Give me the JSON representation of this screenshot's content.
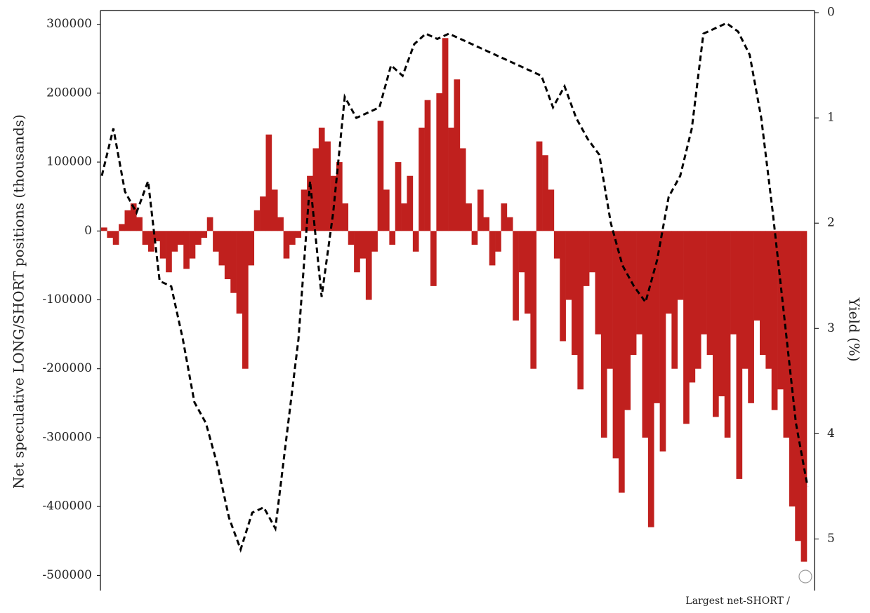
{
  "chart_data": {
    "type": "bar",
    "y_label": "Net speculative LONG/SHORT positions (thousands)",
    "y2_label": "Yield (%)",
    "annotation": "Largest net-SHORT /",
    "ylim": [
      -522000,
      320000
    ],
    "yticks": [
      300000,
      200000,
      100000,
      0,
      -100000,
      -200000,
      -300000,
      -400000,
      -500000
    ],
    "y2lim": [
      5.49,
      -0.02
    ],
    "y2ticks": [
      0,
      1,
      2,
      3,
      4,
      5
    ],
    "series": [
      {
        "type": "bar",
        "color": "#c0201e",
        "values": [
          5000,
          -10000,
          -20000,
          10000,
          30000,
          40000,
          20000,
          -20000,
          -30000,
          -15000,
          -40000,
          -60000,
          -30000,
          -20000,
          -55000,
          -40000,
          -20000,
          -10000,
          20000,
          -30000,
          -50000,
          -70000,
          -90000,
          -120000,
          -200000,
          -50000,
          30000,
          50000,
          140000,
          60000,
          20000,
          -40000,
          -20000,
          -10000,
          60000,
          80000,
          120000,
          150000,
          130000,
          80000,
          100000,
          40000,
          -20000,
          -60000,
          -40000,
          -100000,
          -30000,
          160000,
          60000,
          -20000,
          100000,
          40000,
          80000,
          -30000,
          150000,
          190000,
          -80000,
          200000,
          280000,
          150000,
          220000,
          120000,
          40000,
          -20000,
          60000,
          20000,
          -50000,
          -30000,
          40000,
          20000,
          -130000,
          -60000,
          -120000,
          -200000,
          130000,
          110000,
          60000,
          -40000,
          -160000,
          -100000,
          -180000,
          -230000,
          -80000,
          -60000,
          -150000,
          -300000,
          -200000,
          -330000,
          -380000,
          -260000,
          -180000,
          -150000,
          -300000,
          -430000,
          -250000,
          -320000,
          -120000,
          -200000,
          -100000,
          -280000,
          -220000,
          -200000,
          -150000,
          -180000,
          -270000,
          -240000,
          -300000,
          -150000,
          -360000,
          -200000,
          -250000,
          -130000,
          -180000,
          -200000,
          -260000,
          -230000,
          -300000,
          -400000,
          -450000,
          -480000
        ]
      },
      {
        "type": "line",
        "axis": "y2",
        "color": "#000000",
        "values": [
          1.55,
          1.1,
          1.7,
          1.9,
          1.6,
          2.55,
          2.6,
          3.1,
          3.7,
          3.9,
          4.3,
          4.8,
          5.1,
          4.75,
          4.7,
          4.9,
          4.0,
          3.1,
          1.6,
          2.7,
          1.9,
          0.8,
          1.0,
          0.95,
          0.9,
          0.5,
          0.6,
          0.3,
          0.2,
          0.25,
          0.2,
          0.25,
          0.3,
          0.35,
          0.4,
          0.45,
          0.5,
          0.55,
          0.6,
          0.9,
          0.7,
          1.0,
          1.2,
          1.35,
          2.0,
          2.4,
          2.6,
          2.75,
          2.35,
          1.75,
          1.55,
          1.1,
          0.2,
          0.15,
          0.1,
          0.18,
          0.4,
          1.0,
          1.9,
          2.9,
          3.9,
          4.5
        ]
      }
    ]
  }
}
